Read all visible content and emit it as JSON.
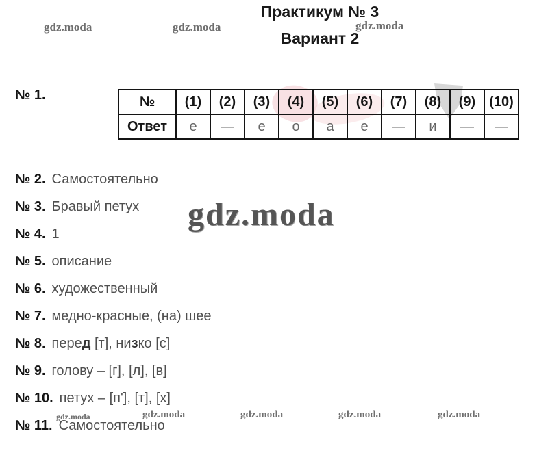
{
  "header": {
    "title": "Практикум № 3",
    "subtitle": "Вариант 2"
  },
  "watermark": {
    "text": "gdz.moda"
  },
  "question1": {
    "label": "№ 1."
  },
  "table": {
    "number_label": "№",
    "columns": [
      "(1)",
      "(2)",
      "(3)",
      "(4)",
      "(5)",
      "(6)",
      "(7)",
      "(8)",
      "(9)",
      "(10)"
    ],
    "answer_label": "Ответ",
    "answers": [
      "е",
      "—",
      "е",
      "о",
      "а",
      "е",
      "—",
      "и",
      "—",
      "—"
    ]
  },
  "items": [
    {
      "label": "№ 2.",
      "parts": [
        {
          "text": "Самостоятельно"
        }
      ]
    },
    {
      "label": "№ 3.",
      "parts": [
        {
          "text": "Бравый петух"
        }
      ]
    },
    {
      "label": "№ 4.",
      "parts": [
        {
          "text": "1"
        }
      ]
    },
    {
      "label": "№ 5.",
      "parts": [
        {
          "text": "описание"
        }
      ]
    },
    {
      "label": "№ 6.",
      "parts": [
        {
          "text": "художественный"
        }
      ]
    },
    {
      "label": "№ 7.",
      "parts": [
        {
          "text": "медно-красные, (на) шее"
        }
      ]
    },
    {
      "label": "№ 8.",
      "parts": [
        {
          "text": "пере"
        },
        {
          "text": "д",
          "bold": true
        },
        {
          "text": " [т], ни"
        },
        {
          "text": "з",
          "bold": true
        },
        {
          "text": "ко [с]"
        }
      ]
    },
    {
      "label": "№ 9.",
      "parts": [
        {
          "text": "голову – [г], [л], [в]"
        }
      ]
    },
    {
      "label": "№ 10.",
      "parts": [
        {
          "text": "петух – [п'], [т], [х]"
        }
      ]
    },
    {
      "label": "№ 11.",
      "parts": [
        {
          "text": "Самостоятельно"
        }
      ]
    }
  ],
  "colors": {
    "label_text": "#161616",
    "answer_text": "#4f4f4f",
    "table_answer_text": "#666666",
    "watermark": "#6f6f6f",
    "pink_blob": "#f3c9ce",
    "gray_blob": "#c9c9c9"
  }
}
